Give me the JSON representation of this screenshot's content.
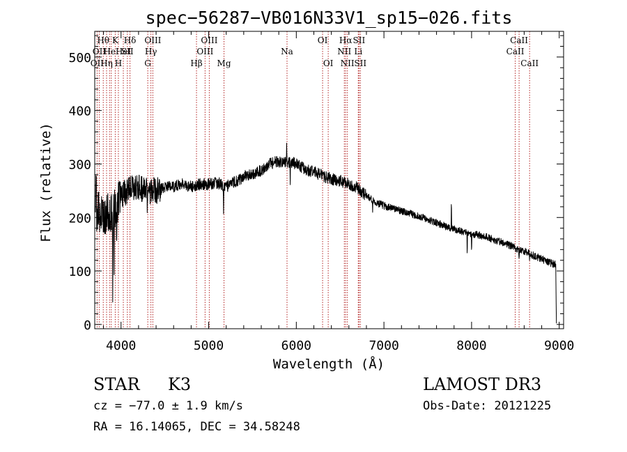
{
  "chart_data": {
    "type": "line",
    "title": "spec−56287−VB016N33V1_sp15−026.fits",
    "xlabel": "Wavelength (Å)",
    "ylabel": "Flux (relative)",
    "xlim": [
      3700,
      9050
    ],
    "ylim": [
      -8,
      548
    ],
    "xticks": [
      4000,
      5000,
      6000,
      7000,
      8000,
      9000
    ],
    "yticks": [
      0,
      100,
      200,
      300,
      400,
      500
    ],
    "colors": {
      "spectrum": "#000000",
      "line_markers": "#b22222",
      "axes": "#000000"
    },
    "continuum": [
      [
        3700,
        215
      ],
      [
        3800,
        205
      ],
      [
        3900,
        210
      ],
      [
        4000,
        240
      ],
      [
        4100,
        255
      ],
      [
        4200,
        255
      ],
      [
        4300,
        250
      ],
      [
        4400,
        250
      ],
      [
        4500,
        256
      ],
      [
        4600,
        258
      ],
      [
        4700,
        262
      ],
      [
        4800,
        258
      ],
      [
        4900,
        262
      ],
      [
        5000,
        262
      ],
      [
        5100,
        265
      ],
      [
        5200,
        258
      ],
      [
        5300,
        266
      ],
      [
        5400,
        276
      ],
      [
        5500,
        282
      ],
      [
        5600,
        288
      ],
      [
        5700,
        300
      ],
      [
        5800,
        305
      ],
      [
        5900,
        305
      ],
      [
        6000,
        300
      ],
      [
        6100,
        290
      ],
      [
        6200,
        285
      ],
      [
        6300,
        278
      ],
      [
        6400,
        272
      ],
      [
        6500,
        268
      ],
      [
        6600,
        262
      ],
      [
        6700,
        255
      ],
      [
        6800,
        240
      ],
      [
        6900,
        228
      ],
      [
        7000,
        222
      ],
      [
        7200,
        212
      ],
      [
        7400,
        202
      ],
      [
        7600,
        190
      ],
      [
        7800,
        178
      ],
      [
        8000,
        170
      ],
      [
        8200,
        162
      ],
      [
        8400,
        150
      ],
      [
        8600,
        137
      ],
      [
        8800,
        122
      ],
      [
        8950,
        112
      ]
    ],
    "features": [
      {
        "x": 3715,
        "dy": 100
      },
      {
        "x": 3905,
        "dy": -150
      },
      {
        "x": 3922,
        "dy": -100
      },
      {
        "x": 3950,
        "dy": -90
      },
      {
        "x": 4300,
        "dy": -50
      },
      {
        "x": 5170,
        "dy": -50
      },
      {
        "x": 5890,
        "dy": 30
      },
      {
        "x": 5930,
        "dy": -35
      },
      {
        "x": 6870,
        "dy": -22
      },
      {
        "x": 7770,
        "dy": 60
      },
      {
        "x": 7950,
        "dy": -45
      },
      {
        "x": 8000,
        "dy": -30
      },
      {
        "x": 8500,
        "dy": -14
      },
      {
        "x": 8542,
        "dy": -15
      },
      {
        "x": 8662,
        "dy": -14
      }
    ],
    "lines": [
      {
        "x": 3727,
        "label": "OII",
        "row": 2
      },
      {
        "x": 3751,
        "label": "OII",
        "row": 1
      },
      {
        "x": 3797,
        "label": "Hθ",
        "row": 0
      },
      {
        "x": 3835,
        "label": "Hη",
        "row": 2
      },
      {
        "x": 3869,
        "label": "He",
        "row": 1
      },
      {
        "x": 3889,
        "label": "",
        "row": 1
      },
      {
        "x": 3934,
        "label": "K",
        "row": 0
      },
      {
        "x": 3970,
        "label": "H",
        "row": 2
      },
      {
        "x": 4026,
        "label": "HeI",
        "row": 1
      },
      {
        "x": 4072,
        "label": "SII",
        "row": 1
      },
      {
        "x": 4102,
        "label": "Hδ",
        "row": 0
      },
      {
        "x": 4305,
        "label": "G",
        "row": 2
      },
      {
        "x": 4341,
        "label": "Hγ",
        "row": 1
      },
      {
        "x": 4363,
        "label": "OIII",
        "row": 0
      },
      {
        "x": 4861,
        "label": "Hβ",
        "row": 2
      },
      {
        "x": 4959,
        "label": "OIII",
        "row": 1
      },
      {
        "x": 5007,
        "label": "OIII",
        "row": 0
      },
      {
        "x": 5175,
        "label": "Mg",
        "row": 2
      },
      {
        "x": 5894,
        "label": "Na",
        "row": 1
      },
      {
        "x": 6300,
        "label": "OI",
        "row": 0
      },
      {
        "x": 6364,
        "label": "OI",
        "row": 2
      },
      {
        "x": 6548,
        "label": "NII",
        "row": 1
      },
      {
        "x": 6563,
        "label": "Hα",
        "row": 0
      },
      {
        "x": 6583,
        "label": "NII",
        "row": 2
      },
      {
        "x": 6707,
        "label": "Li",
        "row": 1
      },
      {
        "x": 6716,
        "label": "SII",
        "row": 0
      },
      {
        "x": 6731,
        "label": "SII",
        "row": 2
      },
      {
        "x": 8498,
        "label": "CaII",
        "row": 1
      },
      {
        "x": 8542,
        "label": "CaII",
        "row": 0
      },
      {
        "x": 8662,
        "label": "CaII",
        "row": 2
      }
    ]
  },
  "info": {
    "class": "STAR",
    "subclass": "K3",
    "release": "LAMOST DR3",
    "cz": "cz = −77.0 ± 1.9 km/s",
    "obs_date": "Obs-Date: 20121225",
    "coords": "RA =  16.14065, DEC =  34.58248"
  }
}
